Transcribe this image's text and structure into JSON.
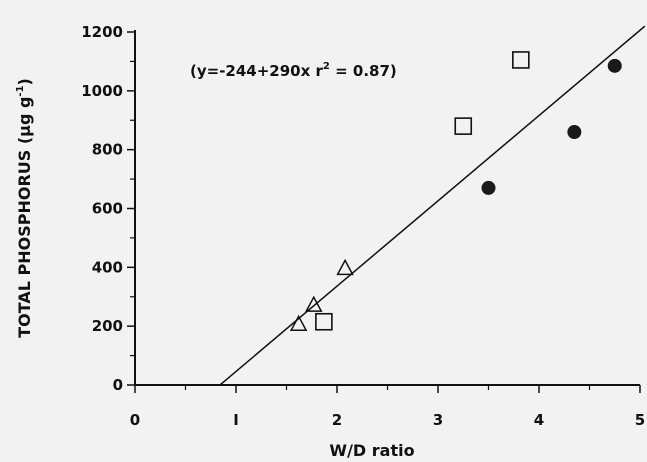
{
  "chart_data": {
    "type": "scatter",
    "title": "",
    "xlabel": "W/D ratio",
    "ylabel": {
      "main": "TOTAL PHOSPHORUS (μg g",
      "sup": "-1",
      "close": ")"
    },
    "xlim": [
      0,
      5
    ],
    "ylim": [
      0,
      1200
    ],
    "x_ticks": [
      "0",
      "I",
      "2",
      "3",
      "4",
      "5"
    ],
    "y_ticks": [
      "0",
      "200",
      "400",
      "600",
      "800",
      "1000",
      "1200"
    ],
    "grid": false,
    "annotation": {
      "main": "(y=-244+290x  r",
      "sup": "2",
      "rest": " = 0.87)"
    },
    "regression": {
      "intercept": -244,
      "slope": 290,
      "r2": 0.87
    },
    "series": [
      {
        "marker": "triangle",
        "points": [
          [
            1.62,
            205
          ],
          [
            1.77,
            270
          ],
          [
            2.08,
            395
          ]
        ]
      },
      {
        "marker": "square",
        "points": [
          [
            1.87,
            215
          ],
          [
            3.25,
            880
          ],
          [
            3.82,
            1105
          ]
        ]
      },
      {
        "marker": "circle",
        "points": [
          [
            3.5,
            670
          ],
          [
            4.35,
            860
          ],
          [
            4.75,
            1085
          ]
        ]
      }
    ]
  }
}
